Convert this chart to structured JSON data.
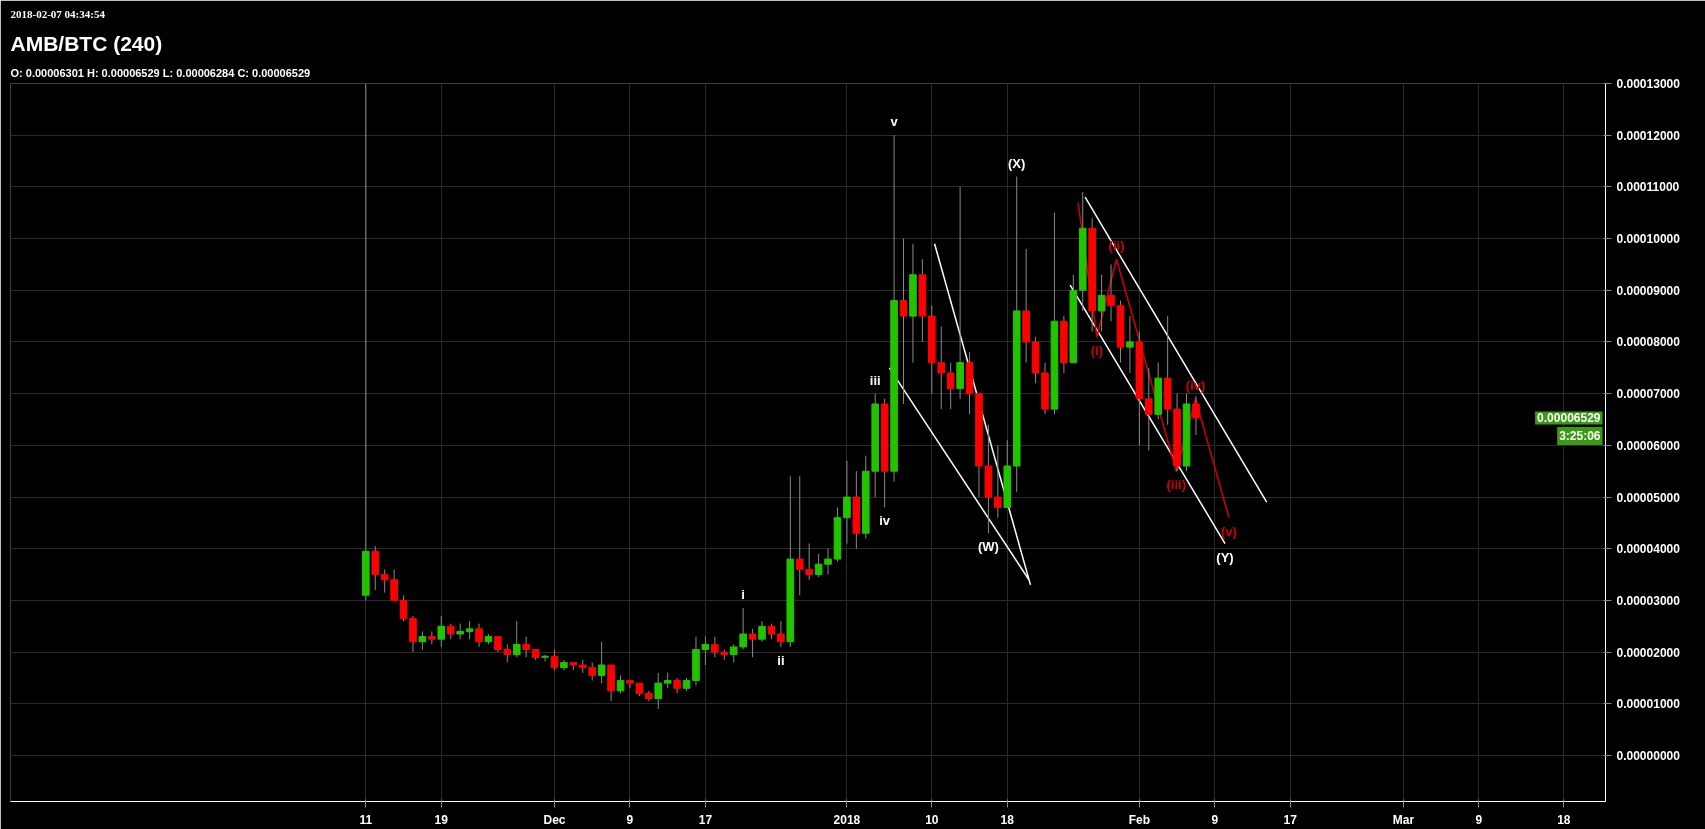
{
  "chart_data": {
    "type": "candlestick",
    "title": "AMB/BTC (240)",
    "subtitle": "O: 0.00006301 H: 0.00006529 L: 0.00006284 C: 0.00006529",
    "x": [
      "2017-11-11",
      "2017-11-12",
      "2017-11-13",
      "2017-11-14",
      "2017-11-15",
      "2017-11-16",
      "2017-11-17",
      "2017-11-18",
      "2017-11-19",
      "2017-11-20",
      "2017-11-21",
      "2017-11-22",
      "2017-11-23",
      "2017-11-24",
      "2017-11-25",
      "2017-11-26",
      "2017-11-27",
      "2017-11-28",
      "2017-11-29",
      "2017-11-30",
      "2017-12-01",
      "2017-12-02",
      "2017-12-03",
      "2017-12-04",
      "2017-12-05",
      "2017-12-06",
      "2017-12-07",
      "2017-12-08",
      "2017-12-09",
      "2017-12-10",
      "2017-12-11",
      "2017-12-12",
      "2017-12-13",
      "2017-12-14",
      "2017-12-15",
      "2017-12-16",
      "2017-12-17",
      "2017-12-18",
      "2017-12-19",
      "2017-12-20",
      "2017-12-21",
      "2017-12-22",
      "2017-12-23",
      "2017-12-24",
      "2017-12-25",
      "2017-12-26",
      "2017-12-27",
      "2017-12-28",
      "2017-12-29",
      "2017-12-30",
      "2017-12-31",
      "2018-01-01",
      "2018-01-02",
      "2018-01-03",
      "2018-01-04",
      "2018-01-05",
      "2018-01-06",
      "2018-01-07",
      "2018-01-08",
      "2018-01-09",
      "2018-01-10",
      "2018-01-11",
      "2018-01-12",
      "2018-01-13",
      "2018-01-14",
      "2018-01-15",
      "2018-01-16",
      "2018-01-17",
      "2018-01-18",
      "2018-01-19",
      "2018-01-20",
      "2018-01-21",
      "2018-01-22",
      "2018-01-23",
      "2018-01-24",
      "2018-01-25",
      "2018-01-26",
      "2018-01-27",
      "2018-01-28",
      "2018-01-29",
      "2018-01-30",
      "2018-01-31",
      "2018-02-01",
      "2018-02-02",
      "2018-02-03",
      "2018-02-04",
      "2018-02-05",
      "2018-02-06",
      "2018-02-07"
    ],
    "ohlc": [
      [
        3.1e-05,
        0.00013,
        3e-05,
        3.95e-05
      ],
      [
        3.95e-05,
        4.05e-05,
        3.2e-05,
        3.5e-05
      ],
      [
        3.5e-05,
        3.6e-05,
        3.15e-05,
        3.4e-05
      ],
      [
        3.4e-05,
        3.6e-05,
        3e-05,
        3e-05
      ],
      [
        3e-05,
        3.1e-05,
        2.6e-05,
        2.65e-05
      ],
      [
        2.65e-05,
        2.7e-05,
        2e-05,
        2.2e-05
      ],
      [
        2.2e-05,
        2.4e-05,
        2.05e-05,
        2.3e-05
      ],
      [
        2.3e-05,
        2.4e-05,
        2.15e-05,
        2.25e-05
      ],
      [
        2.25e-05,
        2.7e-05,
        2.1e-05,
        2.5e-05
      ],
      [
        2.5e-05,
        2.55e-05,
        2.25e-05,
        2.35e-05
      ],
      [
        2.35e-05,
        2.55e-05,
        2.25e-05,
        2.4e-05
      ],
      [
        2.4e-05,
        2.6e-05,
        2.25e-05,
        2.45e-05
      ],
      [
        2.45e-05,
        2.55e-05,
        2.1e-05,
        2.2e-05
      ],
      [
        2.2e-05,
        2.35e-05,
        2.15e-05,
        2.3e-05
      ],
      [
        2.3e-05,
        2.3e-05,
        2e-05,
        2.05e-05
      ],
      [
        2.05e-05,
        2.15e-05,
        1.8e-05,
        1.95e-05
      ],
      [
        1.95e-05,
        2.6e-05,
        1.9e-05,
        2.15e-05
      ],
      [
        2.15e-05,
        2.3e-05,
        1.9e-05,
        2.05e-05
      ],
      [
        2.05e-05,
        2.05e-05,
        1.85e-05,
        1.9e-05
      ],
      [
        1.9e-05,
        1.95e-05,
        1.82e-05,
        1.92e-05
      ],
      [
        1.92e-05,
        2.05e-05,
        1.65e-05,
        1.7e-05
      ],
      [
        1.7e-05,
        1.85e-05,
        1.65e-05,
        1.8e-05
      ],
      [
        1.8e-05,
        1.8e-05,
        1.65e-05,
        1.75e-05
      ],
      [
        1.75e-05,
        1.85e-05,
        1.6e-05,
        1.7e-05
      ],
      [
        1.7e-05,
        1.8e-05,
        1.45e-05,
        1.55e-05
      ],
      [
        1.55e-05,
        2.2e-05,
        1.4e-05,
        1.75e-05
      ],
      [
        1.75e-05,
        1.75e-05,
        1.05e-05,
        1.25e-05
      ],
      [
        1.25e-05,
        1.55e-05,
        1.2e-05,
        1.45e-05
      ],
      [
        1.45e-05,
        1.45e-05,
        1.3e-05,
        1.4e-05
      ],
      [
        1.4e-05,
        1.4e-05,
        1.15e-05,
        1.2e-05
      ],
      [
        1.2e-05,
        1.25e-05,
        1.05e-05,
        1.1e-05
      ],
      [
        1.1e-05,
        1.6e-05,
        9e-06,
        1.4e-05
      ],
      [
        1.4e-05,
        1.6e-05,
        1.3e-05,
        1.45e-05
      ],
      [
        1.45e-05,
        1.5e-05,
        1.2e-05,
        1.3e-05
      ],
      [
        1.3e-05,
        1.5e-05,
        1.25e-05,
        1.45e-05
      ],
      [
        1.45e-05,
        2.3e-05,
        1.35e-05,
        2.05e-05
      ],
      [
        2.05e-05,
        2.3e-05,
        1.75e-05,
        2.15e-05
      ],
      [
        2.15e-05,
        2.3e-05,
        1.9e-05,
        2e-05
      ],
      [
        2e-05,
        2.05e-05,
        1.85e-05,
        1.95e-05
      ],
      [
        1.95e-05,
        2.15e-05,
        1.8e-05,
        2.1e-05
      ],
      [
        2.1e-05,
        2.85e-05,
        2.05e-05,
        2.35e-05
      ],
      [
        2.35e-05,
        2.45e-05,
        1.9e-05,
        2.25e-05
      ],
      [
        2.25e-05,
        2.6e-05,
        2.2e-05,
        2.5e-05
      ],
      [
        2.5e-05,
        2.55e-05,
        2.25e-05,
        2.35e-05
      ],
      [
        2.35e-05,
        2.6e-05,
        2.1e-05,
        2.2e-05
      ],
      [
        2.2e-05,
        5.4e-05,
        2.1e-05,
        3.8e-05
      ],
      [
        3.8e-05,
        5.4e-05,
        3.1e-05,
        3.6e-05
      ],
      [
        3.6e-05,
        4.1e-05,
        3.4e-05,
        3.5e-05
      ],
      [
        3.5e-05,
        3.9e-05,
        3.45e-05,
        3.7e-05
      ],
      [
        3.7e-05,
        4e-05,
        3.5e-05,
        3.8e-05
      ],
      [
        3.8e-05,
        4.8e-05,
        3.75e-05,
        4.6e-05
      ],
      [
        4.6e-05,
        5.7e-05,
        4.1e-05,
        5e-05
      ],
      [
        5e-05,
        5.5e-05,
        4e-05,
        4.3e-05
      ],
      [
        4.3e-05,
        5.8e-05,
        4.2e-05,
        5.5e-05
      ],
      [
        5.5e-05,
        7e-05,
        5e-05,
        6.8e-05
      ],
      [
        6.8e-05,
        6.9e-05,
        4.8e-05,
        5.5e-05
      ],
      [
        5.5e-05,
        0.00012,
        5.3e-05,
        8.8e-05
      ],
      [
        8.8e-05,
        0.0001,
        6.8e-05,
        8.5e-05
      ],
      [
        8.5e-05,
        9.9e-05,
        7.6e-05,
        9.3e-05
      ],
      [
        9.3e-05,
        9.6e-05,
        8e-05,
        8.5e-05
      ],
      [
        8.5e-05,
        8.7e-05,
        7e-05,
        7.6e-05
      ],
      [
        7.6e-05,
        8.3e-05,
        6.7e-05,
        7.4e-05
      ],
      [
        7.4e-05,
        7.6e-05,
        6.7e-05,
        7.1e-05
      ],
      [
        7.1e-05,
        0.00011,
        6.9e-05,
        7.6e-05
      ],
      [
        7.6e-05,
        7.8e-05,
        6.6e-05,
        7e-05
      ],
      [
        7e-05,
        7e-05,
        5e-05,
        5.6e-05
      ],
      [
        5.6e-05,
        6.4e-05,
        4.3e-05,
        5e-05
      ],
      [
        5e-05,
        6e-05,
        4.6e-05,
        4.8e-05
      ],
      [
        4.8e-05,
        6.1e-05,
        4.8e-05,
        5.6e-05
      ],
      [
        5.6e-05,
        0.000112,
        5.1e-05,
        8.6e-05
      ],
      [
        8.6e-05,
        9.8e-05,
        7.6e-05,
        8e-05
      ],
      [
        8e-05,
        8.1e-05,
        7.2e-05,
        7.4e-05
      ],
      [
        7.4e-05,
        7.6e-05,
        6.6e-05,
        6.7e-05
      ],
      [
        6.7e-05,
        0.000105,
        6.6e-05,
        8.4e-05
      ],
      [
        8.4e-05,
        8.5e-05,
        7.4e-05,
        7.6e-05
      ],
      [
        7.6e-05,
        9.3e-05,
        7.6e-05,
        9e-05
      ],
      [
        9e-05,
        0.000109,
        8.6e-05,
        0.000102
      ],
      [
        0.000102,
        0.000104,
        8.2e-05,
        8.6e-05
      ],
      [
        8.6e-05,
        9.3e-05,
        8.2e-05,
        8.9e-05
      ],
      [
        8.9e-05,
        9.5e-05,
        8.4e-05,
        8.7e-05
      ],
      [
        8.7e-05,
        8.8e-05,
        7.6e-05,
        7.9e-05
      ],
      [
        7.9e-05,
        8.5e-05,
        7.4e-05,
        8e-05
      ],
      [
        8e-05,
        8.2e-05,
        6e-05,
        6.9e-05
      ],
      [
        6.9e-05,
        7.5e-05,
        5.9e-05,
        6.6e-05
      ],
      [
        6.6e-05,
        7.6e-05,
        6.5e-05,
        7.3e-05
      ],
      [
        7.3e-05,
        8.5e-05,
        6.4e-05,
        6.7e-05
      ],
      [
        6.7e-05,
        7e-05,
        5.5e-05,
        5.6e-05
      ],
      [
        5.6e-05,
        7e-05,
        5.5e-05,
        6.8e-05
      ],
      [
        6.8e-05,
        6.95e-05,
        6.2e-05,
        6.529e-05
      ]
    ],
    "colors": [
      "#22c400",
      "#ff0000",
      "#ff0000",
      "#ff0000",
      "#ff0000",
      "#ff0000",
      "#22c400",
      "#ff0000",
      "#22c400",
      "#ff0000",
      "#22c400",
      "#22c400",
      "#ff0000",
      "#22c400",
      "#ff0000",
      "#ff0000",
      "#22c400",
      "#ff0000",
      "#ff0000",
      "#22c400",
      "#ff0000",
      "#22c400",
      "#ff0000",
      "#ff0000",
      "#ff0000",
      "#22c400",
      "#ff0000",
      "#22c400",
      "#ff0000",
      "#ff0000",
      "#ff0000",
      "#22c400",
      "#22c400",
      "#ff0000",
      "#22c400",
      "#22c400",
      "#22c400",
      "#ff0000",
      "#ff0000",
      "#22c400",
      "#22c400",
      "#ff0000",
      "#22c400",
      "#ff0000",
      "#ff0000",
      "#22c400",
      "#ff0000",
      "#ff0000",
      "#22c400",
      "#22c400",
      "#22c400",
      "#22c400",
      "#ff0000",
      "#22c400",
      "#22c400",
      "#ff0000",
      "#22c400",
      "#ff0000",
      "#22c400",
      "#ff0000",
      "#ff0000",
      "#ff0000",
      "#ff0000",
      "#22c400",
      "#ff0000",
      "#ff0000",
      "#ff0000",
      "#ff0000",
      "#22c400",
      "#22c400",
      "#ff0000",
      "#ff0000",
      "#ff0000",
      "#22c400",
      "#ff0000",
      "#22c400",
      "#22c400",
      "#ff0000",
      "#22c400",
      "#ff0000",
      "#ff0000",
      "#22c400",
      "#ff0000",
      "#ff0000",
      "#22c400",
      "#ff0000",
      "#ff0000",
      "#22c400",
      "#ff0000"
    ],
    "series": [
      {
        "type": "line",
        "color": "#ffffff",
        "x": [
          "2018-01-05T12:00",
          "2018-01-20T07:00"
        ],
        "values": [
          7.5e-05,
          3.4e-05
        ]
      },
      {
        "type": "line",
        "color": "#ffffff",
        "x": [
          "2018-01-10T07:00",
          "2018-01-20T11:00"
        ],
        "values": [
          9.9e-05,
          3.3e-05
        ]
      },
      {
        "type": "line",
        "color": "#ffffff",
        "x": [
          "2018-01-26T06:00",
          "2018-02-14T12:00"
        ],
        "values": [
          0.000108,
          4.9e-05
        ]
      },
      {
        "type": "line",
        "color": "#ffffff",
        "x": [
          "2018-01-24T16:00",
          "2018-02-10T02:00"
        ],
        "values": [
          9.1e-05,
          4.1e-05
        ]
      },
      {
        "type": "line",
        "color": "#d00000",
        "x": [
          "2018-01-25T12:00",
          "2018-01-27T12:00",
          "2018-01-29T14:00",
          "2018-02-04T22:00",
          "2018-02-06T23:00",
          "2018-02-10T12:00"
        ],
        "values": [
          0.000107,
          8.1e-05,
          9.6e-05,
          5.5e-05,
          6.9e-05,
          4.6e-05
        ]
      }
    ],
    "annotations": [
      "2018-02-07 04:34:54",
      {
        "text": "v",
        "x": "2018-01-06",
        "y": 0.00012
      },
      {
        "text": "iii",
        "x": "2018-01-04",
        "y": 7e-05
      },
      {
        "text": "iv",
        "x": "2018-01-05",
        "y": 4.8e-05
      },
      {
        "text": "i",
        "x": "2017-12-21",
        "y": 2.85e-05
      },
      {
        "text": "ii",
        "x": "2017-12-25",
        "y": 2.1e-05
      },
      {
        "text": "(X)",
        "x": "2018-01-19",
        "y": 0.000112
      },
      {
        "text": "(W)",
        "x": "2018-01-16",
        "y": 4.3e-05
      },
      {
        "text": "(Y)",
        "x": "2018-02-10T02:00",
        "y": 4.1e-05
      },
      {
        "text": "(i)",
        "x": "2018-01-27T12:00",
        "y": 8.1e-05
      },
      {
        "text": "(ii)",
        "x": "2018-01-29T14:00",
        "y": 9.6e-05
      },
      {
        "text": "(iii)",
        "x": "2018-02-04T22:00",
        "y": 5.5e-05
      },
      {
        "text": "(iv)",
        "x": "2018-02-06T23:00",
        "y": 6.9e-05
      },
      {
        "text": "(v)",
        "x": "2018-02-10T12:00",
        "y": 4.6e-05
      },
      "0.00006529",
      "3:25:06"
    ],
    "xlim": [
      "2017-10-04T08:00",
      "2018-03-22T10:00"
    ],
    "xticks": [
      {
        "value": "2017-11-11",
        "label": "11"
      },
      {
        "value": "2017-11-19",
        "label": "19"
      },
      {
        "value": "2017-12-01",
        "label": "Dec"
      },
      {
        "value": "2017-12-09",
        "label": "9"
      },
      {
        "value": "2017-12-17",
        "label": "17"
      },
      {
        "value": "2018-01-01",
        "label": "2018"
      },
      {
        "value": "2018-01-10",
        "label": "10"
      },
      {
        "value": "2018-01-18",
        "label": "18"
      },
      {
        "value": "2018-02-01",
        "label": "Feb"
      },
      {
        "value": "2018-02-09",
        "label": "9"
      },
      {
        "value": "2018-02-17",
        "label": "17"
      },
      {
        "value": "2018-03-01",
        "label": "Mar"
      },
      {
        "value": "2018-03-09",
        "label": "9"
      },
      {
        "value": "2018-03-18",
        "label": "18"
      }
    ],
    "ylim": [
      -8.9e-06,
      0.00013
    ],
    "yticks": [
      {
        "value": 0,
        "label": "0.00000000"
      },
      {
        "value": 1e-05,
        "label": "0.00001000"
      },
      {
        "value": 2e-05,
        "label": "0.00002000"
      },
      {
        "value": 3e-05,
        "label": "0.00003000"
      },
      {
        "value": 4e-05,
        "label": "0.00004000"
      },
      {
        "value": 5e-05,
        "label": "0.00005000"
      },
      {
        "value": 6e-05,
        "label": "0.00006000"
      },
      {
        "value": 7e-05,
        "label": "0.00007000"
      },
      {
        "value": 8e-05,
        "label": "0.00008000"
      },
      {
        "value": 9e-05,
        "label": "0.00009000"
      },
      {
        "value": 0.0001,
        "label": "0.00010000"
      },
      {
        "value": 0.00011,
        "label": "0.00011000"
      },
      {
        "value": 0.00012,
        "label": "0.00012000"
      },
      {
        "value": 0.00013,
        "label": "0.00013000"
      }
    ],
    "grid": true
  }
}
